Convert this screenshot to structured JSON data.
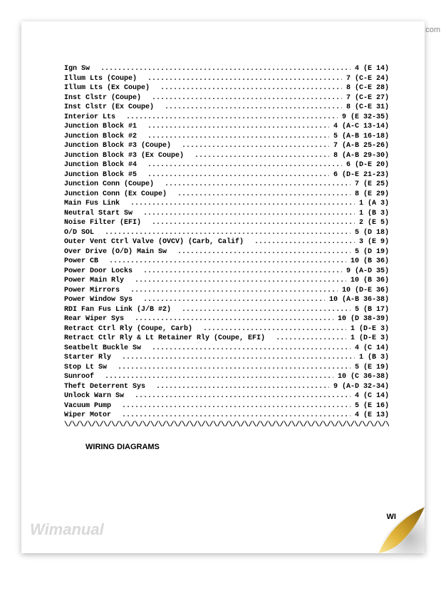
{
  "watermark_top": "wimanual.com",
  "watermark_bottom_left": "Wimanual",
  "watermark_bottom_right": "WI",
  "section_heading": "WIRING DIAGRAMS",
  "divider_char": "\\/\\/\\/\\/\\/\\/\\/\\/\\/\\/\\/\\/\\/\\/\\/\\/\\/\\/\\/\\/\\/\\/\\/\\/\\/\\/\\/\\/\\/\\/\\/\\/\\/\\/\\/\\/\\/\\/\\/\\/\\/\\/\\/\\/\\/\\/\\/\\/\\/\\/\\/\\/\\/\\/\\/\\/\\/\\/\\/\\/\\/\\/\\/\\/\\/\\/\\/\\/\\/",
  "index_items": [
    {
      "label": "Ign Sw",
      "ref": "4 (E 14)"
    },
    {
      "label": "Illum Lts (Coupe)",
      "ref": "7 (C-E 24)"
    },
    {
      "label": "Illum Lts (Ex Coupe)",
      "ref": "8 (C-E 28)"
    },
    {
      "label": "Inst Clstr (Coupe)",
      "ref": "7 (C-E 27)"
    },
    {
      "label": "Inst Clstr (Ex Coupe)",
      "ref": "8 (C-E 31)"
    },
    {
      "label": "Interior Lts",
      "ref": "9 (E 32-35)"
    },
    {
      "label": "Junction Block #1",
      "ref": "4 (A-C 13-14)"
    },
    {
      "label": "Junction Block #2",
      "ref": "5 (A-B 16-18)"
    },
    {
      "label": "Junction Block #3 (Coupe)",
      "ref": "7 (A-B 25-26)"
    },
    {
      "label": "Junction Block #3 (Ex Coupe)",
      "ref": "8 (A-B 29-30)"
    },
    {
      "label": "Junction Block #4",
      "ref": "6 (D-E 20)"
    },
    {
      "label": "Junction Block #5",
      "ref": "6 (D-E 21-23)"
    },
    {
      "label": "Junction Conn (Coupe)",
      "ref": "7 (E 25)"
    },
    {
      "label": "Junction Conn (Ex Coupe)",
      "ref": "8 (E 29)"
    },
    {
      "label": "Main Fus Link",
      "ref": "1 (A 3)"
    },
    {
      "label": "Neutral Start Sw",
      "ref": "1 (B 3)"
    },
    {
      "label": "Noise Filter (EFI)",
      "ref": "2 (E 5)"
    },
    {
      "label": "O/D SOL",
      "ref": "5 (D 18)"
    },
    {
      "label": "Outer Vent Ctrl Valve (OVCV) (Carb, Calif)",
      "ref": "3 (E 9)"
    },
    {
      "label": "Over Drive (O/D) Main Sw",
      "ref": "5 (D 19)"
    },
    {
      "label": "Power CB",
      "ref": "10 (B 36)"
    },
    {
      "label": "Power Door Locks",
      "ref": "9 (A-D 35)"
    },
    {
      "label": "Power Main Rly",
      "ref": "10 (B 36)"
    },
    {
      "label": "Power Mirrors",
      "ref": "10 (D-E 36)"
    },
    {
      "label": "Power Window Sys",
      "ref": "10 (A-B 36-38)"
    },
    {
      "label": "RDI Fan Fus Link (J/B #2)",
      "ref": "5 (B 17)"
    },
    {
      "label": "Rear Wiper Sys",
      "ref": "10 (D 38-39)"
    },
    {
      "label": "Retract Ctrl Rly (Coupe, Carb)",
      "ref": "1 (D-E 3)"
    },
    {
      "label": "Retract Ctlr Rly & Lt Retainer Rly (Coupe, EFI)",
      "ref": "1 (D-E 3)"
    },
    {
      "label": "Seatbelt Buckle Sw",
      "ref": "4 (C 14)"
    },
    {
      "label": "Starter Rly",
      "ref": "1 (B 3)"
    },
    {
      "label": "Stop Lt Sw",
      "ref": "5 (E 19)"
    },
    {
      "label": "Sunroof",
      "ref": "10 (C 36-38)"
    },
    {
      "label": "Theft Deterrent Sys",
      "ref": "9 (A-D 32-34)"
    },
    {
      "label": "Unlock Warn Sw",
      "ref": "4 (C 14)"
    },
    {
      "label": "Vacuum Pump",
      "ref": "5 (E 16)"
    },
    {
      "label": "Wiper Motor",
      "ref": "4 (E 13)"
    }
  ],
  "curl_colors": {
    "fold_highlight": "#f9e89a",
    "fold_mid": "#e3b73c",
    "fold_dark": "#b88a1e",
    "fold_shadow": "#7a5c14"
  }
}
